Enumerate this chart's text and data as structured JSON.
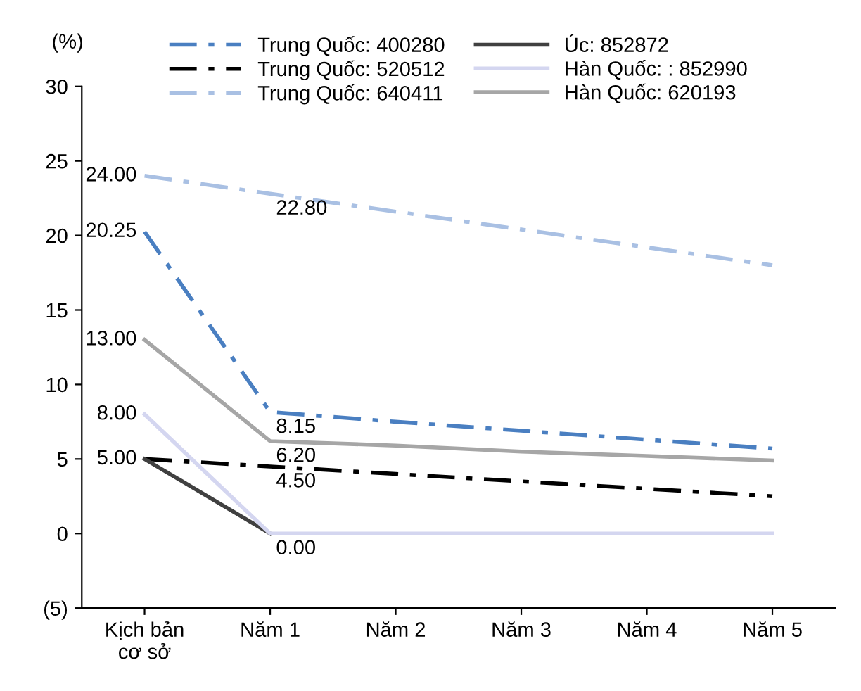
{
  "chart_data": {
    "type": "line",
    "ylabel": "(%)",
    "categories": [
      "Kịch bản\ncơ sở",
      "Năm 1",
      "Năm 2",
      "Năm 3",
      "Năm 4",
      "Năm 5"
    ],
    "series": [
      {
        "name": "Trung Quốc: 400280",
        "color": "#4a7fc1",
        "line_style": "dashed",
        "values": [
          20.25,
          8.15,
          7.5,
          6.9,
          6.3,
          5.7
        ],
        "value_labels": [
          "20.25",
          "8.15",
          null,
          null,
          null,
          null
        ]
      },
      {
        "name": "Trung Quốc: 520512",
        "color": "#000000",
        "line_style": "dashed",
        "values": [
          5.0,
          4.5,
          4.0,
          3.5,
          3.0,
          2.5
        ],
        "value_labels": [
          null,
          "4.50",
          null,
          null,
          null,
          null
        ]
      },
      {
        "name": "Trung Quốc: 640411",
        "color": "#a9c0e3",
        "line_style": "dashed",
        "values": [
          24.0,
          22.8,
          21.6,
          20.4,
          19.2,
          18.0
        ],
        "value_labels": [
          "24.00",
          "22.80",
          null,
          null,
          null,
          null
        ]
      },
      {
        "name": "Úc: 852872",
        "color": "#404040",
        "line_style": "solid",
        "values": [
          5.0,
          0.0,
          null,
          null,
          null,
          null
        ],
        "value_labels": [
          "5.00",
          "0.00",
          null,
          null,
          null,
          null
        ]
      },
      {
        "name": "Hàn Quốc: : 852990",
        "color": "#d4d6f0",
        "line_style": "solid",
        "values": [
          8.0,
          0.0,
          0.0,
          0.0,
          0.0,
          0.0
        ],
        "value_labels": [
          "8.00",
          null,
          null,
          null,
          null,
          null
        ]
      },
      {
        "name": "Hàn Quốc: 620193",
        "color": "#a6a6a6",
        "line_style": "solid",
        "values": [
          13.0,
          6.2,
          5.9,
          5.5,
          5.2,
          4.9
        ],
        "value_labels": [
          "13.00",
          "6.20",
          null,
          null,
          null,
          null
        ]
      }
    ],
    "ylim": [
      -5,
      30
    ],
    "yticks": [
      {
        "value": -5,
        "label": "(5)"
      },
      0,
      5,
      10,
      15,
      20,
      25,
      30
    ],
    "grid": false,
    "legend": "top"
  }
}
